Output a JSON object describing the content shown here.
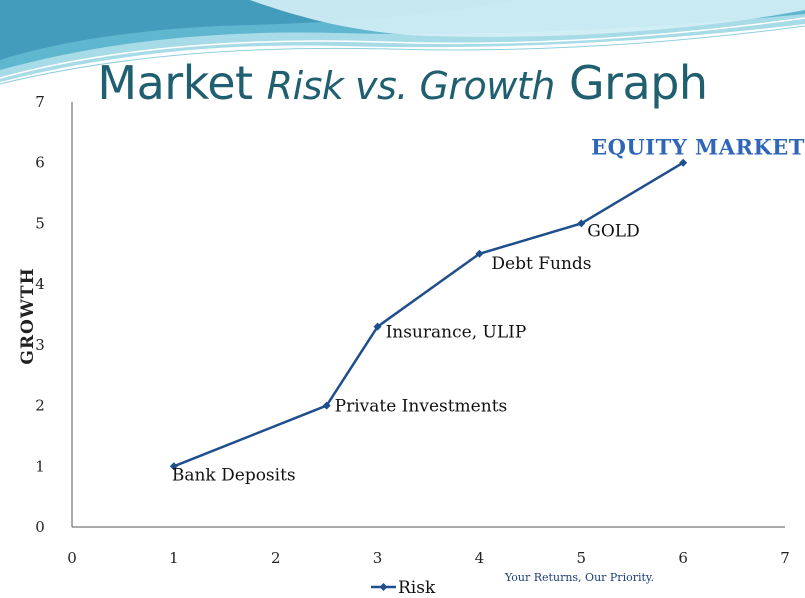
{
  "slide": {
    "title_part1": "Market ",
    "title_part2": "Risk vs. Growth",
    "title_part3": " Graph",
    "tagline": "Your Returns, Our Priority."
  },
  "colors": {
    "title": "#1f5f70",
    "line": "#1f4e8c",
    "highlight_label": "#2f66b8",
    "banner_dark": "#5fb6cf",
    "banner_light": "#bfe6f0"
  },
  "chart_data": {
    "type": "line",
    "title": "",
    "xlabel": "",
    "ylabel": "GROWTH",
    "xlim": [
      0,
      7
    ],
    "ylim": [
      0,
      7
    ],
    "xticks": [
      0,
      1,
      2,
      3,
      4,
      5,
      6,
      7
    ],
    "yticks": [
      0,
      1,
      2,
      3,
      4,
      5,
      6,
      7
    ],
    "grid": false,
    "legend_position": "bottom-center",
    "series": [
      {
        "name": "Risk",
        "x": [
          1,
          2.5,
          3,
          4,
          5,
          6
        ],
        "y": [
          1,
          2,
          3.3,
          4.5,
          5,
          6
        ]
      }
    ],
    "annotations": [
      {
        "text": "Bank Deposits",
        "x": 1,
        "y": 1
      },
      {
        "text": "Private Investments",
        "x": 2.5,
        "y": 2
      },
      {
        "text": "Insurance, ULIP",
        "x": 3,
        "y": 3.3
      },
      {
        "text": "Debt Funds",
        "x": 4,
        "y": 4.5
      },
      {
        "text": "GOLD",
        "x": 5,
        "y": 5
      },
      {
        "text": "EQUITY MARKET",
        "x": 6,
        "y": 6,
        "highlight": true
      }
    ]
  }
}
